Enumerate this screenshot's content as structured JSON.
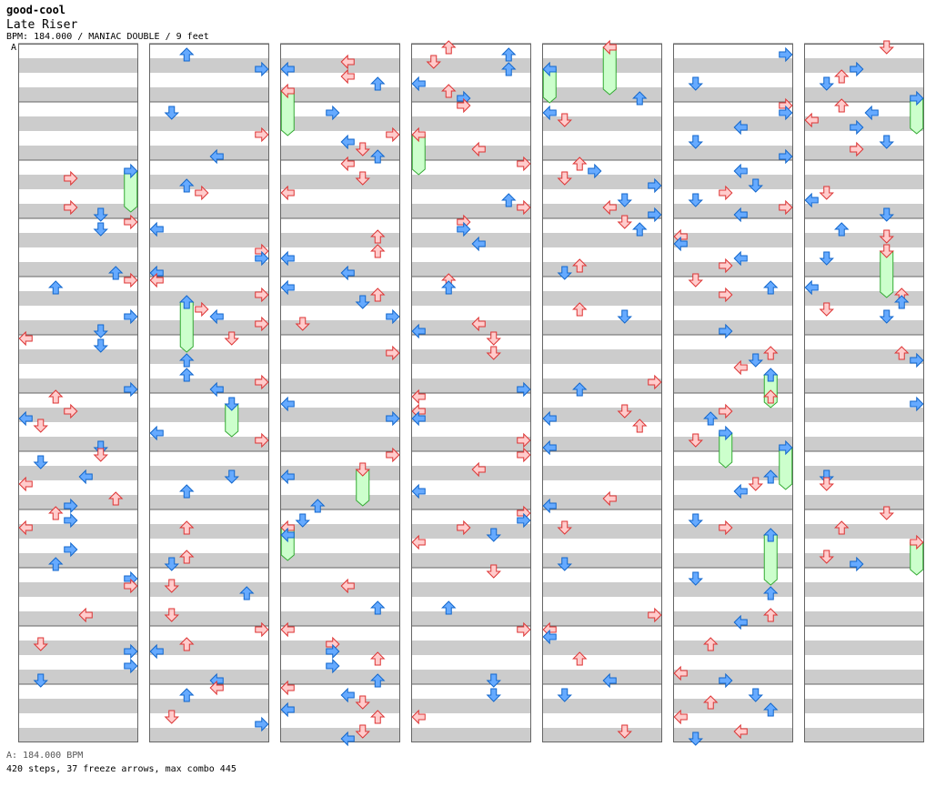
{
  "header": {
    "site": "good-cool",
    "title": "Late Riser",
    "info": "BPM: 184.000 / MANIAC DOUBLE / 9 feet",
    "marker": "A"
  },
  "footer": {
    "bpm_line": "A: 184.000 BPM",
    "stats_line": "420 steps, 37 freeze arrows, max combo 445"
  },
  "colors": {
    "stripe": "#cccccc",
    "border": "#666666",
    "red_fill": "#ffcccc",
    "red_stroke": "#dd3333",
    "blue_fill": "#66aaff",
    "blue_stroke": "#1166cc",
    "freeze_fill": "#ccffcc",
    "freeze_stroke": "#33aa33"
  },
  "chart_data": {
    "type": "step-chart",
    "columns": 7,
    "measures_per_column": 12,
    "lanes": [
      "left",
      "down",
      "up",
      "right",
      "left",
      "down",
      "up",
      "right"
    ],
    "arrow_colors": [
      "red",
      "blue"
    ]
  }
}
